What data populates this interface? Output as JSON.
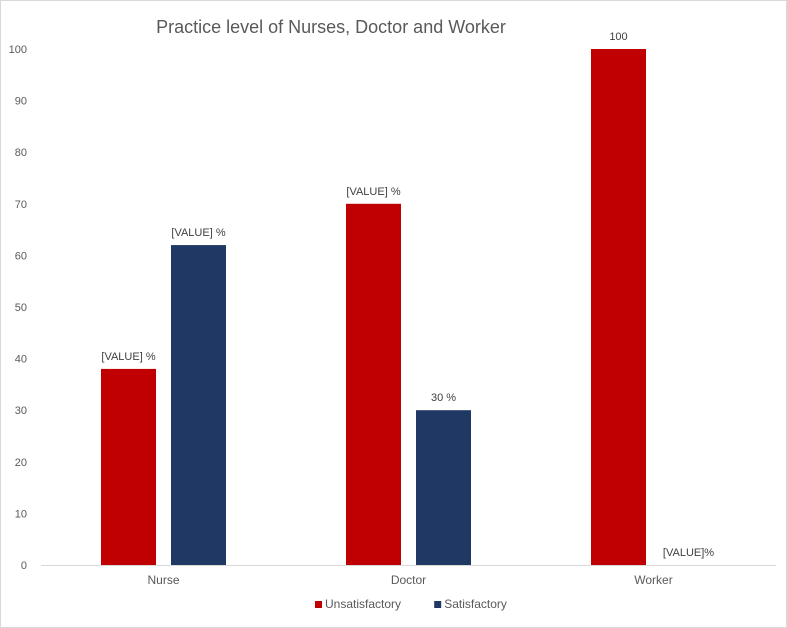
{
  "chart_data": {
    "type": "bar",
    "title": "Practice level of  Nurses, Doctor and Worker",
    "xlabel": "",
    "ylabel": "",
    "ylim": [
      0,
      100
    ],
    "y_ticks": [
      "0",
      "10",
      "20",
      "30",
      "40",
      "50",
      "60",
      "70",
      "80",
      "90",
      "100"
    ],
    "grid": false,
    "legend_position": "bottom",
    "categories": [
      "Nurse",
      "Doctor",
      "Worker"
    ],
    "series": [
      {
        "name": "Unsatisfactory",
        "color": "#c00000",
        "values": [
          38,
          70,
          100
        ],
        "data_labels": [
          "[VALUE] %",
          "[VALUE] %",
          "100"
        ]
      },
      {
        "name": "Satisfactory",
        "color": "#1f3864",
        "values": [
          62,
          30,
          0
        ],
        "data_labels": [
          "[VALUE] %",
          "30 %",
          "[VALUE]%"
        ]
      }
    ]
  }
}
